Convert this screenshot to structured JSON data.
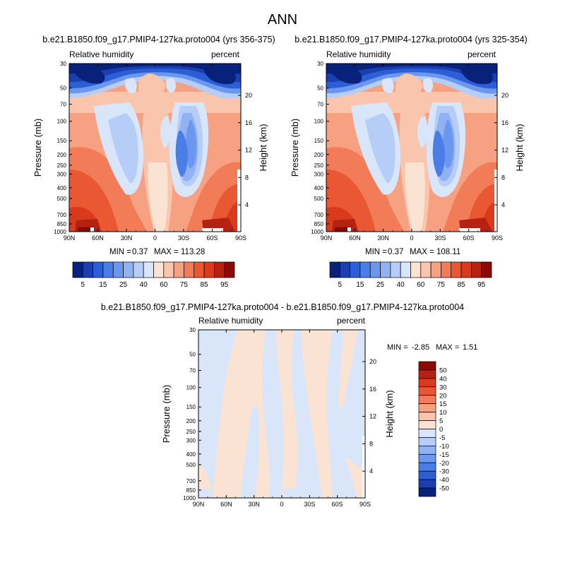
{
  "page": {
    "title": "ANN"
  },
  "chart_data": [
    {
      "type": "contour",
      "title": "b.e21.B1850.f09_g17.PMIP4-127ka.proto004 (yrs 356-375)",
      "left_label": "Relative humidity",
      "right_label": "percent",
      "xlabel": "",
      "ylabel": "Pressure (mb)",
      "ylabel_right": "Height (km)",
      "x_ticks": [
        "90N",
        "60N",
        "30N",
        "0",
        "30S",
        "60S",
        "90S"
      ],
      "y_ticks": [
        "30",
        "50",
        "70",
        "100",
        "150",
        "200",
        "250",
        "300",
        "400",
        "500",
        "700",
        "850",
        "1000"
      ],
      "y_ticks_right": [
        "20",
        "16",
        "12",
        "8",
        "4"
      ],
      "min_label": "MIN =",
      "min_value": "0.37",
      "max_label": "MAX =",
      "max_value": "113.28",
      "colorbar_levels": [
        "5",
        "15",
        "25",
        "40",
        "60",
        "75",
        "85",
        "95"
      ]
    },
    {
      "type": "contour",
      "title": "b.e21.B1850.f09_g17.PMIP4-127ka.proto004 (yrs 325-354)",
      "left_label": "Relative humidity",
      "right_label": "percent",
      "xlabel": "",
      "ylabel": "Pressure (mb)",
      "ylabel_right": "Height (km)",
      "x_ticks": [
        "90N",
        "60N",
        "30N",
        "0",
        "30S",
        "60S",
        "90S"
      ],
      "y_ticks": [
        "30",
        "50",
        "70",
        "100",
        "150",
        "200",
        "250",
        "300",
        "400",
        "500",
        "700",
        "850",
        "1000"
      ],
      "y_ticks_right": [
        "20",
        "16",
        "12",
        "8",
        "4"
      ],
      "min_label": "MIN =",
      "min_value": "0.37",
      "max_label": "MAX =",
      "max_value": "108.11",
      "colorbar_levels": [
        "5",
        "15",
        "25",
        "40",
        "60",
        "75",
        "85",
        "95"
      ]
    },
    {
      "type": "contour",
      "title": "b.e21.B1850.f09_g17.PMIP4-127ka.proto004 - b.e21.B1850.f09_g17.PMIP4-127ka.proto004",
      "left_label": "Relative humidity",
      "right_label": "percent",
      "xlabel": "",
      "ylabel": "Pressure (mb)",
      "ylabel_right": "Height (km)",
      "x_ticks": [
        "90N",
        "60N",
        "30N",
        "0",
        "30S",
        "60S",
        "90S"
      ],
      "y_ticks": [
        "30",
        "50",
        "70",
        "100",
        "150",
        "200",
        "250",
        "300",
        "400",
        "500",
        "700",
        "850",
        "1000"
      ],
      "y_ticks_right": [
        "20",
        "16",
        "12",
        "8",
        "4"
      ],
      "min_label": "MIN =",
      "min_value": "-2.85",
      "max_label": "MAX =",
      "max_value": "1.51",
      "colorbar_levels": [
        "50",
        "40",
        "30",
        "20",
        "15",
        "10",
        "5",
        "0",
        "-5",
        "-10",
        "-15",
        "-20",
        "-30",
        "-40",
        "-50"
      ]
    }
  ],
  "colors": {
    "main_scale": [
      "#08217a",
      "#1b3fb0",
      "#2c5fd6",
      "#4a7ee6",
      "#6b97ee",
      "#90b2f3",
      "#b5cdf7",
      "#d9e6fa",
      "#fbe3d4",
      "#f9c5ac",
      "#f6a282",
      "#f27c58",
      "#ea5733",
      "#d83a1b",
      "#b52212",
      "#8a0b06"
    ],
    "diff_scale": [
      "#8a0b06",
      "#b52212",
      "#d83a1b",
      "#ea5733",
      "#f27c58",
      "#f6a282",
      "#f9c5ac",
      "#fbe3d4",
      "#d9e6fa",
      "#b5cdf7",
      "#90b2f3",
      "#6b97ee",
      "#4a7ee6",
      "#2c5fd6",
      "#1b3fb0",
      "#08217a"
    ]
  }
}
